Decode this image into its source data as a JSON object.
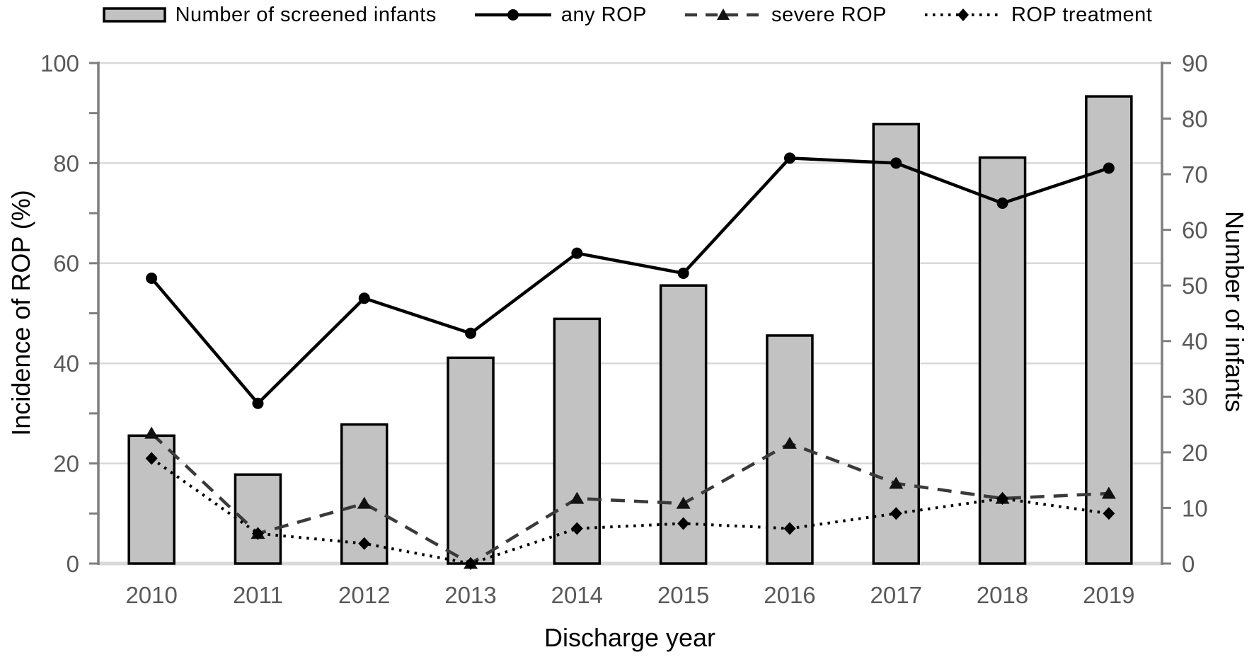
{
  "legend": {
    "items": [
      {
        "key": "screened_infants",
        "label": "Number of screened infants",
        "swatch": "bar"
      },
      {
        "key": "any_rop",
        "label": "any ROP",
        "swatch": "solid-line-circle"
      },
      {
        "key": "severe_rop",
        "label": "severe ROP",
        "swatch": "dashed-line-triangle"
      },
      {
        "key": "rop_treatment",
        "label": "ROP treatment",
        "swatch": "dotted-line-diamond"
      }
    ]
  },
  "chart_data": {
    "type": "bar",
    "subtype": "bar-line-combo",
    "categories": [
      "2010",
      "2011",
      "2012",
      "2013",
      "2014",
      "2015",
      "2016",
      "2017",
      "2018",
      "2019"
    ],
    "bar_series": {
      "name": "Number of screened infants",
      "axis": "right",
      "values": [
        23,
        16,
        25,
        37,
        44,
        50,
        41,
        79,
        73,
        84
      ]
    },
    "line_series": [
      {
        "name": "any ROP",
        "axis": "left",
        "style": "solid",
        "marker": "circle",
        "values": [
          57,
          32,
          53,
          46,
          62,
          58,
          81,
          80,
          72,
          79
        ]
      },
      {
        "name": "severe ROP",
        "axis": "left",
        "style": "dashed",
        "marker": "triangle",
        "values": [
          26,
          6,
          12,
          0,
          13,
          12,
          24,
          16,
          13,
          14
        ]
      },
      {
        "name": "ROP treatment",
        "axis": "left",
        "style": "dotted",
        "marker": "diamond",
        "values": [
          21,
          6,
          4,
          0,
          7,
          8,
          7,
          10,
          13,
          10
        ]
      }
    ],
    "left_axis": {
      "title": "Incidence of ROP (%)",
      "min": 0,
      "max": 100,
      "label_step": 20,
      "tick_step": 10,
      "tick_labels": [
        "0",
        "20",
        "40",
        "60",
        "80",
        "100"
      ]
    },
    "right_axis": {
      "title": "Number of infants",
      "min": 0,
      "max": 90,
      "label_step": 10,
      "tick_step": 10,
      "tick_labels": [
        "0",
        "10",
        "20",
        "30",
        "40",
        "50",
        "60",
        "70",
        "80",
        "90"
      ]
    },
    "x_axis": {
      "title": "Discharge year"
    },
    "grid": "horizontal",
    "legend_position": "top",
    "colors": {
      "bar_fill": "#c2c2c2",
      "bar_border": "#000000",
      "any_rop_line": "#000000",
      "severe_rop_line": "#3a3a3a",
      "severe_rop_marker": "#111111",
      "rop_treatment_line": "#000000",
      "gridline": "#d9d9d9",
      "axis_line": "#7f7f7f",
      "tick_label": "#595959",
      "axis_title": "#000000"
    }
  }
}
